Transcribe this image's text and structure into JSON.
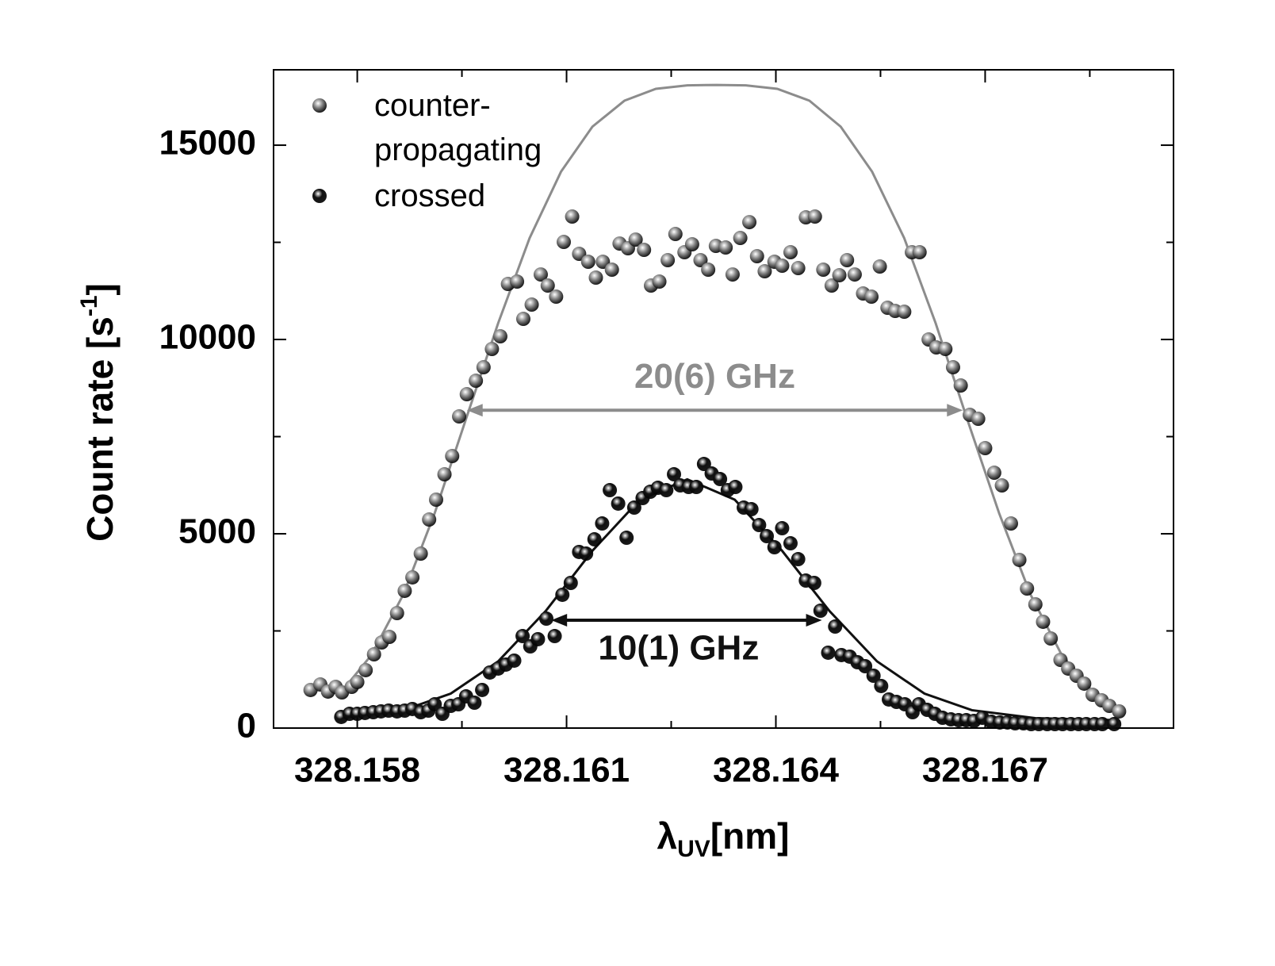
{
  "chart_data": {
    "type": "scatter",
    "xlabel": [
      "λ",
      "UV",
      "[nm]"
    ],
    "ylabel": [
      "Count rate [s",
      "-1",
      "]"
    ],
    "xlim": [
      328.1568,
      328.1697
    ],
    "ylim": [
      0,
      16940
    ],
    "xticks": [
      328.158,
      328.161,
      328.164,
      328.167
    ],
    "xticks_minor": [
      328.1595,
      328.1625,
      328.1655,
      328.1685
    ],
    "yticks": [
      0,
      5000,
      10000,
      15000
    ],
    "yticks_minor": [
      2500,
      7500,
      12500
    ],
    "legend": "upper left",
    "series": [
      {
        "name": "counter-propagating",
        "color": "#8c8c8c",
        "x": [
          328.15733,
          328.15747,
          328.15758,
          328.15769,
          328.15778,
          328.15792,
          328.158,
          328.15812,
          328.15824,
          328.15835,
          328.15846,
          328.15857,
          328.15868,
          328.15879,
          328.15891,
          328.15903,
          328.15913,
          328.15925,
          328.15936,
          328.15946,
          328.15957,
          328.1597,
          328.15981,
          328.15993,
          328.16005,
          328.16016,
          328.16029,
          328.16038,
          328.1605,
          328.16063,
          328.16073,
          328.16085,
          328.16096,
          328.16108,
          328.16118,
          328.16131,
          328.16142,
          328.16152,
          328.16165,
          328.16176,
          328.16188,
          328.16199,
          328.16211,
          328.16221,
          328.16233,
          328.16245,
          328.16256,
          328.16269,
          328.1628,
          328.16292,
          328.16303,
          328.16314,
          328.16328,
          328.16338,
          328.16349,
          328.16362,
          328.16373,
          328.16384,
          328.16398,
          328.16409,
          328.16421,
          328.16432,
          328.16443,
          328.16456,
          328.16468,
          328.1648,
          328.16491,
          328.16502,
          328.16513,
          328.16525,
          328.16537,
          328.16549,
          328.1656,
          328.16571,
          328.16584,
          328.16595,
          328.16606,
          328.16619,
          328.1663,
          328.16643,
          328.16654,
          328.16665,
          328.16678,
          328.1669,
          328.167,
          328.16713,
          328.16724,
          328.16737,
          328.16749,
          328.1676,
          328.16772,
          328.16783,
          328.16794,
          328.16808,
          328.16819,
          328.16831,
          328.16842,
          328.16854,
          328.16867,
          328.16878,
          328.16892
        ],
        "values": [
          980,
          1122,
          939,
          1061,
          918,
          1061,
          1184,
          1490,
          1898,
          2204,
          2347,
          2959,
          3531,
          3878,
          4490,
          5367,
          5878,
          6531,
          7000,
          8020,
          8592,
          8939,
          9286,
          9755,
          10082,
          11429,
          11490,
          10531,
          10898,
          11673,
          11388,
          11102,
          12510,
          13163,
          12204,
          12000,
          11592,
          12000,
          11796,
          12469,
          12347,
          12571,
          12306,
          11388,
          11490,
          12041,
          12714,
          12245,
          12449,
          12041,
          11796,
          12408,
          12367,
          11673,
          12612,
          13020,
          12143,
          11755,
          12000,
          11898,
          12245,
          11837,
          13143,
          13163,
          11796,
          11388,
          11653,
          12041,
          11673,
          11184,
          11102,
          11878,
          10816,
          10735,
          10714,
          12245,
          12245,
          10000,
          9796,
          9755,
          9286,
          8816,
          8061,
          7959,
          7204,
          6571,
          6245,
          5265,
          4327,
          3592,
          3184,
          2735,
          2306,
          1755,
          1531,
          1347,
          1143,
          857,
          714,
          571,
          429
        ],
        "fit": {
          "x": [
            328.15775,
            328.1582,
            328.15866,
            328.15911,
            328.15956,
            328.16002,
            328.16047,
            328.16092,
            328.16137,
            328.16183,
            328.16228,
            328.16273,
            328.16315,
            328.16357,
            328.16402,
            328.16448,
            328.16493,
            328.16538,
            328.16584,
            328.16629,
            328.16674,
            328.1672,
            328.16765,
            328.1681,
            328.16862
          ],
          "values": [
            880,
            1874,
            3437,
            5531,
            7962,
            10421,
            12608,
            14316,
            15476,
            16146,
            16451,
            16540,
            16550,
            16540,
            16451,
            16146,
            15476,
            14316,
            12608,
            10421,
            7962,
            5531,
            3437,
            1874,
            773
          ]
        }
      },
      {
        "name": "crossed",
        "color": "#111111",
        "x": [
          328.15777,
          328.15789,
          328.158,
          328.15811,
          328.15823,
          328.15834,
          328.15845,
          328.15857,
          328.15868,
          328.15879,
          328.15891,
          328.15902,
          328.15911,
          328.15922,
          328.15934,
          328.15945,
          328.15956,
          328.15968,
          328.15979,
          328.1599,
          328.16002,
          328.16013,
          328.16025,
          328.16037,
          328.16048,
          328.16059,
          328.16071,
          328.16083,
          328.16094,
          328.16106,
          328.16118,
          328.16128,
          328.1614,
          328.16151,
          328.16162,
          328.16174,
          328.16186,
          328.16197,
          328.16209,
          328.1622,
          328.16231,
          328.16243,
          328.16254,
          328.16263,
          328.16275,
          328.16286,
          328.16297,
          328.16308,
          328.1632,
          328.16331,
          328.16342,
          328.16354,
          328.16365,
          328.16376,
          328.16387,
          328.16398,
          328.16409,
          328.16421,
          328.16432,
          328.16443,
          328.16455,
          328.16464,
          328.16475,
          328.16485,
          328.16494,
          328.16506,
          328.16517,
          328.16528,
          328.1654,
          328.16551,
          328.16562,
          328.16573,
          328.16585,
          328.16596,
          328.16605,
          328.16617,
          328.16628,
          328.16639,
          328.16651,
          328.16662,
          328.16673,
          328.16684,
          328.16696,
          328.16709,
          328.16721,
          328.16732,
          328.16743,
          328.16755,
          328.16766,
          328.16777,
          328.16789,
          328.168,
          328.16811,
          328.16823,
          328.16834,
          328.16845,
          328.16857,
          328.16868,
          328.16885
        ],
        "values": [
          286,
          367,
          367,
          388,
          408,
          429,
          449,
          429,
          449,
          490,
          408,
          449,
          612,
          367,
          571,
          612,
          816,
          653,
          980,
          1429,
          1531,
          1633,
          1735,
          2367,
          2102,
          2286,
          2816,
          2367,
          3429,
          3735,
          4531,
          4490,
          4857,
          5265,
          6122,
          5776,
          4898,
          5673,
          5918,
          6082,
          6184,
          6122,
          6531,
          6245,
          6204,
          6204,
          6796,
          6551,
          6408,
          6122,
          6204,
          5673,
          5633,
          5224,
          4939,
          4653,
          5143,
          4755,
          4347,
          3796,
          3735,
          3020,
          1939,
          2612,
          1878,
          1837,
          1694,
          1592,
          1347,
          1082,
          735,
          673,
          612,
          408,
          612,
          469,
          367,
          265,
          224,
          204,
          204,
          184,
          265,
          163,
          143,
          143,
          122,
          122,
          102,
          102,
          102,
          102,
          102,
          102,
          102,
          102,
          102,
          102,
          102
        ],
        "fit": {
          "x": [
            328.15775,
            328.15866,
            328.15934,
            328.16002,
            328.1607,
            328.16137,
            328.16205,
            328.16273,
            328.16341,
            328.16409,
            328.16477,
            328.16545,
            328.16613,
            328.16681,
            328.16772,
            328.16885
          ],
          "values": [
            255,
            460,
            888,
            1717,
            3009,
            4561,
            5879,
            6400,
            5879,
            4561,
            3009,
            1717,
            888,
            460,
            255,
            205
          ]
        }
      }
    ],
    "annotations": [
      {
        "text": "20(6) GHz",
        "color": "#8c8c8c",
        "x": [
          328.15957,
          328.16668
        ],
        "y": 8180
      },
      {
        "text": "10(1) GHz",
        "color": "#111111",
        "x": [
          328.16078,
          328.16466
        ],
        "y": 2776
      }
    ]
  }
}
